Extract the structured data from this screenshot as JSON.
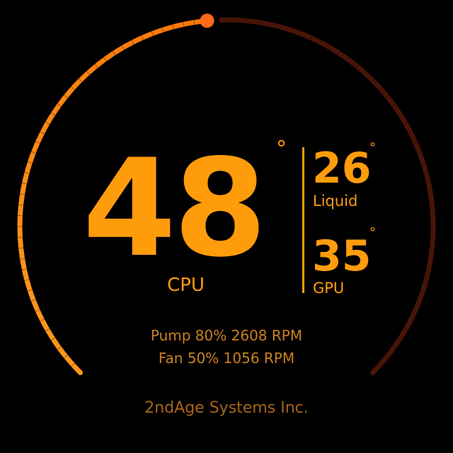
{
  "gauge": {
    "cpu_temp_value": "48",
    "degree_symbol": "°",
    "cpu_label": "CPU",
    "liquid_value": "26",
    "liquid_label": "Liquid",
    "gpu_value": "35",
    "gpu_label": "GPU",
    "cpu_load_fraction": 0.48
  },
  "stats": {
    "pump_line": "Pump 80% 2608 RPM",
    "fan_line": "Fan 50% 1056 RPM"
  },
  "brand": {
    "name": "2ndAge Systems Inc."
  },
  "colors": {
    "background": "#000000",
    "accent": "#ff9c0c",
    "arc_start": "#ff7a0a",
    "arc_remaining": "#4a1408",
    "stats_text": "#c9811f",
    "brand_text": "#a76419",
    "indicator_dot": "#ff6a1a",
    "tick_mark": "#1a0f08"
  }
}
